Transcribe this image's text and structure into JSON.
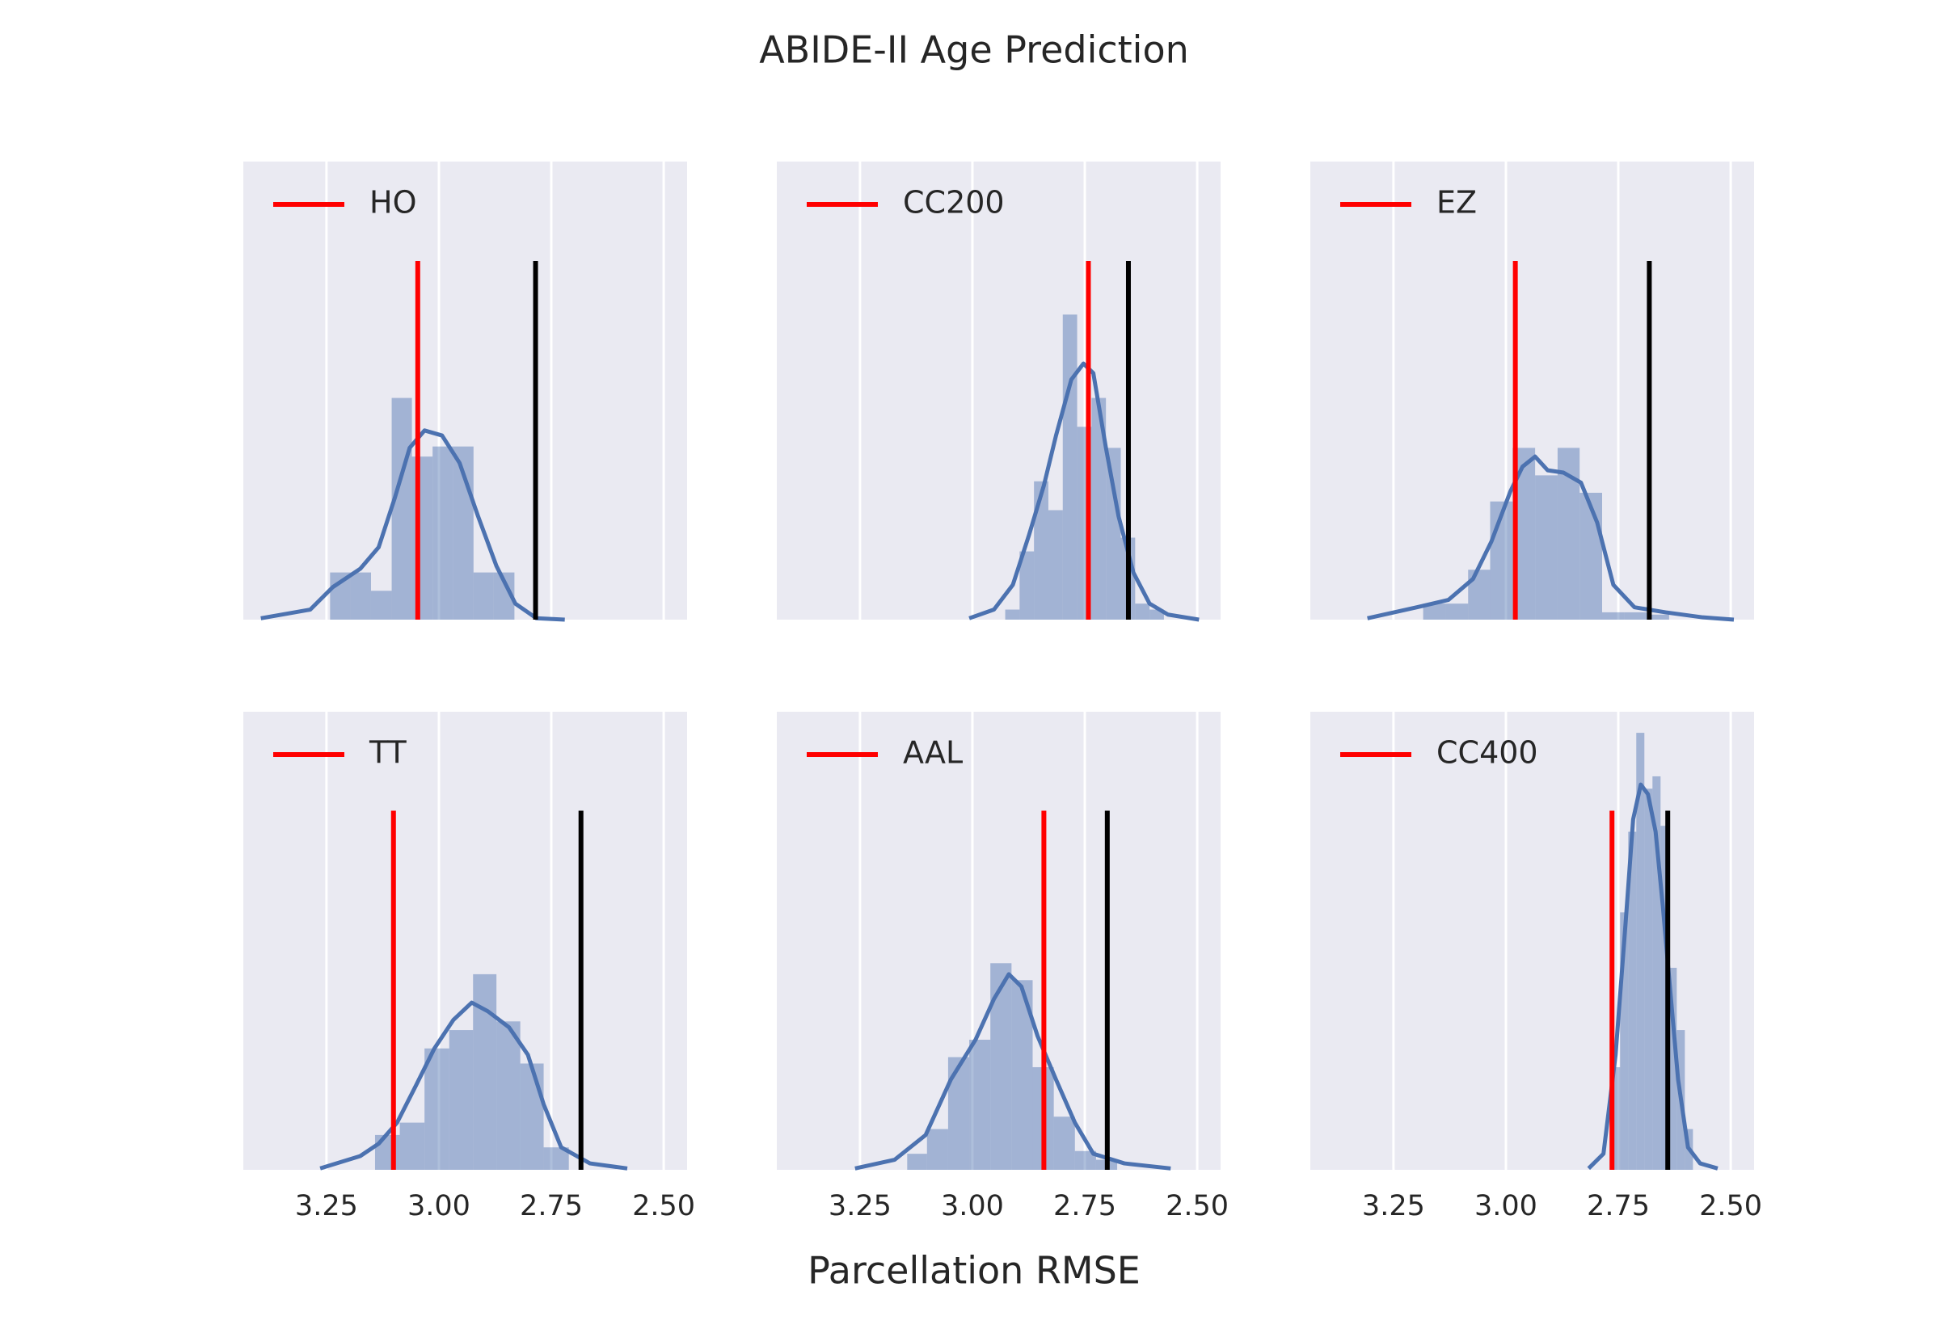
{
  "title": "ABIDE-II Age Prediction",
  "xlabel": "Parcellation RMSE",
  "chart_data": [
    {
      "type": "histogram",
      "color": "#4c72b0",
      "grid": true,
      "legend": "upper left",
      "xlim": [
        3.435,
        2.448
      ],
      "xticks": [
        3.25,
        {
          "value": 3.0,
          "label": "3.00"
        },
        2.75,
        {
          "value": 2.5,
          "label": "2.50"
        }
      ],
      "ylim": [
        0,
        100
      ],
      "bins": [
        3.242,
        3.196,
        3.151,
        3.105,
        3.06,
        3.014,
        2.969,
        2.923,
        2.878,
        2.832
      ],
      "counts": [
        10.3,
        10.3,
        6.3,
        48.4,
        35.6,
        37.8,
        37.8,
        10.3,
        10.3
      ],
      "kde": {
        "x": [
          3.396,
          3.286,
          3.236,
          3.175,
          3.134,
          3.098,
          3.065,
          3.032,
          2.993,
          2.954,
          2.913,
          2.872,
          2.83,
          2.783,
          2.72
        ],
        "y": [
          0.3,
          2.2,
          7.1,
          11.1,
          15.8,
          26.6,
          37.5,
          41.3,
          40.2,
          34.2,
          22.6,
          11.7,
          3.5,
          0.3,
          0
        ]
      },
      "vlines": [
        {
          "name": "HO",
          "x": 3.047,
          "height": 78.3,
          "color": "#ff0000"
        },
        {
          "x": 2.785,
          "height": 78.3,
          "color": "#000000"
        }
      ]
    },
    {
      "type": "histogram",
      "color": "#4c72b0",
      "grid": true,
      "legend": "upper left",
      "xlim": [
        3.435,
        2.448
      ],
      "xticks": [
        3.25,
        {
          "value": 3.0,
          "label": "3.00"
        },
        2.75,
        {
          "value": 2.5,
          "label": "2.50"
        }
      ],
      "ylim": [
        0,
        100
      ],
      "bins": [
        2.927,
        2.895,
        2.863,
        2.831,
        2.799,
        2.767,
        2.735,
        2.703,
        2.67,
        2.638,
        2.606,
        2.574
      ],
      "counts": [
        2.2,
        14.9,
        30.2,
        23.9,
        66.6,
        42.1,
        48.4,
        37.5,
        17.9,
        3.5,
        2.2
      ],
      "kde": {
        "x": [
          3.007,
          2.952,
          2.91,
          2.874,
          2.841,
          2.814,
          2.78,
          2.753,
          2.731,
          2.703,
          2.675,
          2.642,
          2.606,
          2.565,
          2.496
        ],
        "y": [
          0.3,
          2.2,
          7.6,
          18.5,
          29.3,
          40.2,
          52.4,
          55.9,
          53.8,
          37.5,
          22.6,
          10.3,
          3.5,
          1.1,
          0
        ]
      },
      "vlines": [
        {
          "name": "CC200",
          "x": 2.742,
          "height": 78.3,
          "color": "#ff0000"
        },
        {
          "x": 2.653,
          "height": 78.3,
          "color": "#000000"
        }
      ]
    },
    {
      "type": "histogram",
      "color": "#4c72b0",
      "grid": true,
      "legend": "upper left",
      "xlim": [
        3.435,
        2.448
      ],
      "xticks": [
        3.25,
        {
          "value": 3.0,
          "label": "3.00"
        },
        2.75,
        {
          "value": 2.5,
          "label": "2.50"
        }
      ],
      "ylim": [
        0,
        100
      ],
      "bins": [
        3.184,
        3.134,
        3.084,
        3.035,
        2.985,
        2.935,
        2.885,
        2.836,
        2.786,
        2.736,
        2.686,
        2.637
      ],
      "counts": [
        3.5,
        3.5,
        10.9,
        25.8,
        37.5,
        31.5,
        37.5,
        27.7,
        1.6,
        1.6,
        1.1
      ],
      "kde": {
        "x": [
          3.308,
          3.198,
          3.128,
          3.073,
          3.032,
          2.99,
          2.963,
          2.935,
          2.907,
          2.872,
          2.833,
          2.797,
          2.761,
          2.714,
          2.645,
          2.562,
          2.493
        ],
        "y": [
          0.3,
          2.7,
          4.3,
          8.9,
          17.1,
          28.0,
          33.4,
          35.6,
          32.6,
          32.1,
          29.9,
          21.2,
          7.6,
          2.7,
          1.6,
          0.5,
          0
        ]
      },
      "vlines": [
        {
          "name": "EZ",
          "x": 2.979,
          "height": 78.3,
          "color": "#ff0000"
        },
        {
          "x": 2.681,
          "height": 78.3,
          "color": "#000000"
        }
      ]
    },
    {
      "type": "histogram",
      "color": "#4c72b0",
      "grid": true,
      "legend": "upper left",
      "xlim": [
        3.435,
        2.448
      ],
      "xticks": [
        3.25,
        {
          "value": 3.0,
          "label": "3.00"
        },
        2.75,
        {
          "value": 2.5,
          "label": "2.50"
        }
      ],
      "ylim": [
        0,
        100
      ],
      "bins": [
        3.142,
        3.087,
        3.032,
        2.977,
        2.924,
        2.872,
        2.819,
        2.767,
        2.711
      ],
      "counts": [
        7.6,
        10.3,
        26.5,
        30.5,
        42.7,
        32.4,
        23.2,
        4.9
      ],
      "kde": {
        "x": [
          3.264,
          3.175,
          3.134,
          3.093,
          3.051,
          3.01,
          2.968,
          2.927,
          2.891,
          2.844,
          2.802,
          2.767,
          2.728,
          2.664,
          2.581
        ],
        "y": [
          0.3,
          3.0,
          5.7,
          10.3,
          18.4,
          26.5,
          32.7,
          36.5,
          34.6,
          31.1,
          25.1,
          14.3,
          4.9,
          1.4,
          0.3
        ]
      },
      "vlines": [
        {
          "name": "TT",
          "x": 3.101,
          "height": 78.4,
          "color": "#ff0000"
        },
        {
          "x": 2.684,
          "height": 78.4,
          "color": "#000000"
        }
      ]
    },
    {
      "type": "histogram",
      "color": "#4c72b0",
      "grid": true,
      "legend": "upper left",
      "xlim": [
        3.435,
        2.448
      ],
      "xticks": [
        3.25,
        {
          "value": 3.0,
          "label": "3.00"
        },
        2.75,
        {
          "value": 2.5,
          "label": "2.50"
        }
      ],
      "ylim": [
        0,
        100
      ],
      "bins": [
        3.145,
        3.101,
        3.054,
        3.007,
        2.96,
        2.913,
        2.866,
        2.819,
        2.772,
        2.725,
        2.678
      ],
      "counts": [
        3.5,
        8.9,
        24.6,
        28.4,
        45.1,
        41.4,
        22.4,
        11.6,
        4.1,
        2.2
      ],
      "kde": {
        "x": [
          3.261,
          3.173,
          3.104,
          3.048,
          2.993,
          2.952,
          2.919,
          2.891,
          2.855,
          2.814,
          2.772,
          2.731,
          2.662,
          2.559
        ],
        "y": [
          0.3,
          2.2,
          7.6,
          19.7,
          28.4,
          37.3,
          42.7,
          40.0,
          29.2,
          19.7,
          10.3,
          3.5,
          1.4,
          0.3
        ]
      },
      "vlines": [
        {
          "name": "AAL",
          "x": 2.841,
          "height": 78.4,
          "color": "#ff0000"
        },
        {
          "x": 2.7,
          "height": 78.4,
          "color": "#000000"
        }
      ]
    },
    {
      "type": "histogram",
      "color": "#4c72b0",
      "grid": true,
      "legend": "upper left",
      "xlim": [
        3.435,
        2.448
      ],
      "xticks": [
        3.25,
        {
          "value": 3.0,
          "label": "3.00"
        },
        2.75,
        {
          "value": 2.5,
          "label": "2.50"
        }
      ],
      "ylim": [
        0,
        100
      ],
      "bins": [
        2.764,
        2.746,
        2.728,
        2.71,
        2.692,
        2.674,
        2.656,
        2.638,
        2.62,
        2.602,
        2.584
      ],
      "counts": [
        22.4,
        56.2,
        73.8,
        95.4,
        83.2,
        85.9,
        75.1,
        44.1,
        30.5,
        8.9
      ],
      "kde": {
        "x": [
          2.816,
          2.783,
          2.756,
          2.733,
          2.717,
          2.7,
          2.684,
          2.667,
          2.651,
          2.634,
          2.617,
          2.595,
          2.568,
          2.529
        ],
        "y": [
          0.3,
          3.5,
          25.1,
          54.9,
          76.5,
          84.1,
          82.0,
          73.8,
          57.6,
          38.6,
          19.7,
          4.9,
          1.4,
          0.3
        ]
      },
      "vlines": [
        {
          "name": "CC400",
          "x": 2.764,
          "height": 78.4,
          "color": "#ff0000"
        },
        {
          "x": 2.64,
          "height": 78.4,
          "color": "#000000"
        }
      ]
    }
  ]
}
